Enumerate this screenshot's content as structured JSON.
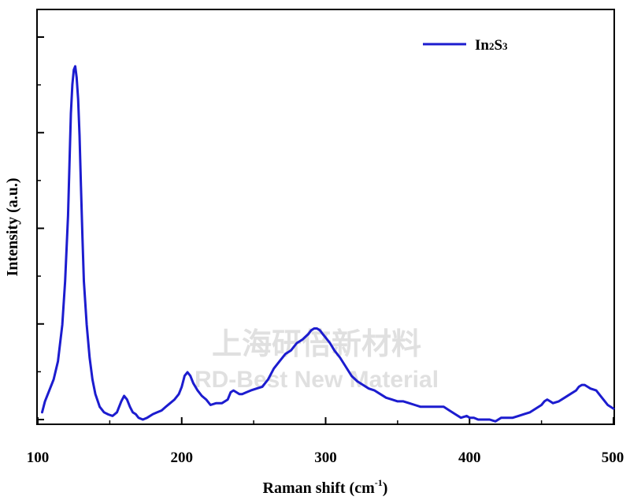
{
  "chart_data": {
    "type": "line",
    "xlabel": "Raman shift (cm",
    "xlabel_sup": "-1",
    "xlabel_end": ")",
    "ylabel": "Intensity (a.u.)",
    "xlim": [
      100,
      500
    ],
    "ylim": [
      0,
      100
    ],
    "xticks": [
      "100",
      "200",
      "300",
      "400",
      "500"
    ],
    "grid": false,
    "legend_position": "top-right",
    "series": [
      {
        "name_main": "In",
        "name_sub1": "2",
        "name_mid": "S",
        "name_sub2": "3",
        "color": "#1c1ccf",
        "x": [
          103,
          105,
          108,
          111,
          114,
          117,
          119,
          121,
          122,
          123,
          124,
          125,
          126,
          127,
          128,
          129,
          130,
          131,
          132,
          134,
          136,
          138,
          140,
          143,
          146,
          149,
          152,
          155,
          158,
          160,
          162,
          164,
          166,
          168,
          170,
          173,
          176,
          180,
          183,
          186,
          189,
          192,
          195,
          198,
          200,
          202,
          204,
          206,
          208,
          211,
          214,
          217,
          220,
          224,
          228,
          232,
          234,
          236,
          238,
          240,
          242,
          245,
          248,
          252,
          256,
          258,
          260,
          264,
          268,
          272,
          276,
          280,
          284,
          288,
          290,
          292,
          294,
          296,
          298,
          300,
          303,
          306,
          310,
          314,
          318,
          322,
          326,
          330,
          334,
          338,
          342,
          346,
          350,
          354,
          358,
          362,
          366,
          370,
          374,
          378,
          382,
          386,
          390,
          394,
          398,
          400,
          403,
          406,
          410,
          414,
          418,
          422,
          426,
          430,
          434,
          438,
          442,
          446,
          450,
          452,
          454,
          456,
          458,
          462,
          466,
          470,
          474,
          476,
          478,
          480,
          482,
          484,
          488,
          492,
          496,
          500
        ],
        "y": [
          2,
          5,
          8,
          11,
          16,
          26,
          38,
          56,
          70,
          84,
          92,
          96,
          97,
          94,
          88,
          78,
          64,
          50,
          38,
          26,
          17,
          11,
          7,
          3.5,
          2,
          1.4,
          1,
          2,
          5,
          6.5,
          5.5,
          3.5,
          2,
          1.5,
          0.5,
          0,
          0.5,
          1.5,
          2,
          2.5,
          3.5,
          4.5,
          5.5,
          7,
          9,
          12,
          13,
          12,
          10,
          8,
          6.5,
          5.5,
          4,
          4.5,
          4.5,
          5.5,
          7.5,
          8,
          7.5,
          7,
          7,
          7.5,
          8,
          8.5,
          9,
          10,
          11,
          14,
          16,
          18,
          19,
          21,
          22,
          23.5,
          24.5,
          25,
          25,
          24.5,
          23.5,
          22.5,
          21,
          19,
          17,
          14.5,
          12,
          10.5,
          9.5,
          8.5,
          8,
          7,
          6,
          5.5,
          5,
          5,
          4.5,
          4,
          3.5,
          3.5,
          3.5,
          3.5,
          3.5,
          2.5,
          1.5,
          0.5,
          1,
          0.5,
          0.5,
          0,
          0,
          0,
          -0.5,
          0.5,
          0.5,
          0.5,
          1,
          1.5,
          2,
          3,
          4,
          5,
          5.5,
          5,
          4.5,
          5,
          6,
          7,
          8,
          9,
          9.5,
          9.5,
          9,
          8.5,
          8,
          6,
          4,
          3
        ]
      }
    ]
  },
  "watermark": {
    "line1": "上海研倍新材料",
    "line2": "RD-Best New Material"
  }
}
